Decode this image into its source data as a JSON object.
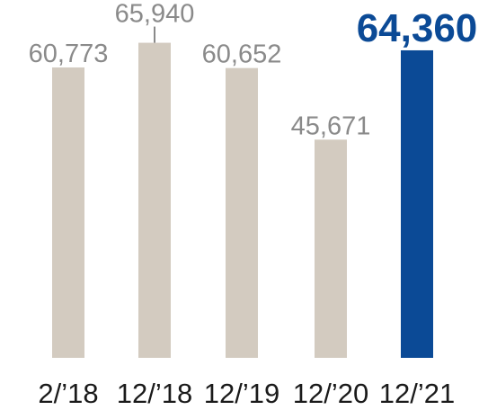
{
  "chart_data": {
    "type": "bar",
    "categories": [
      "2/’18",
      "12/’18",
      "12/’19",
      "12/’20",
      "12/’21"
    ],
    "values": [
      60773,
      65940,
      60652,
      45671,
      64360
    ],
    "value_labels": [
      "60,773",
      "65,940",
      "60,652",
      "45,671",
      "64,360"
    ],
    "highlight_index": 4,
    "ylim": [
      0,
      70000
    ],
    "grid": false,
    "legend": "none",
    "title": "",
    "xlabel": "",
    "ylabel": ""
  },
  "colors": {
    "bar": "#d3cbc0",
    "highlight_bar": "#0b4a96",
    "value_text": "#8a8a8a",
    "highlight_text": "#0b4a96",
    "category_text": "#1a1a1a"
  }
}
